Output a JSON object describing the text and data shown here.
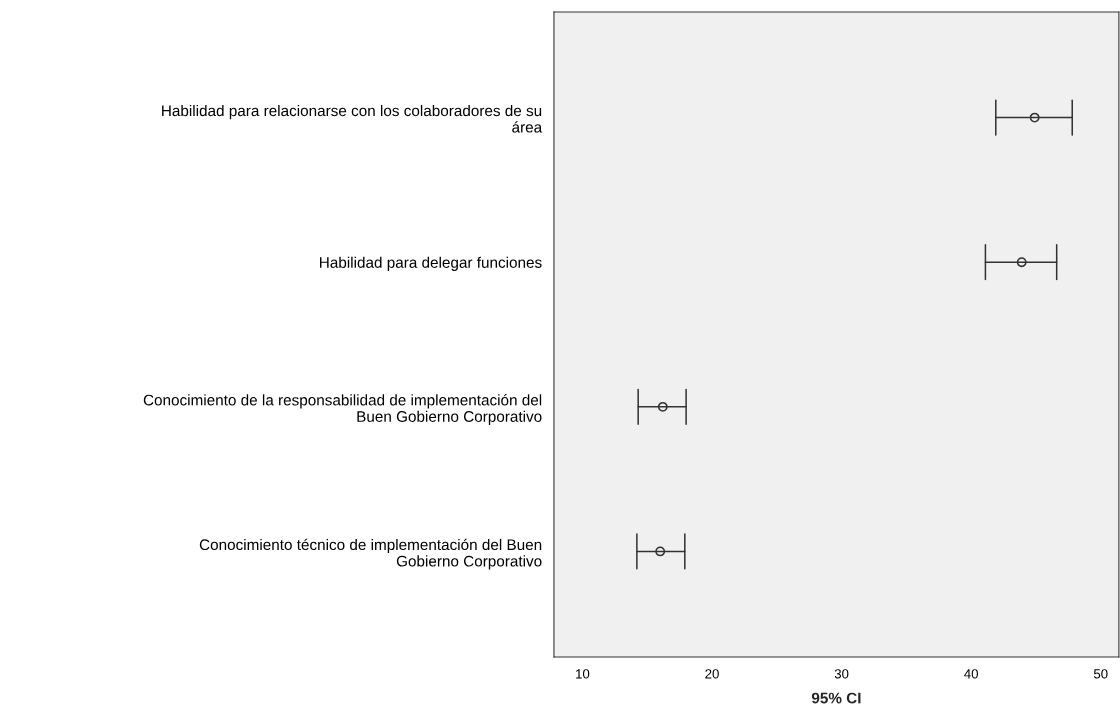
{
  "chart_data": {
    "type": "scatter",
    "orientation": "horizontal",
    "categories": [
      "Habilidad para relacionarse con los colaboradores de su\nárea",
      "Habilidad para delegar funciones",
      "Conocimiento de la responsabilidad de implementación del\nBuen Gobierno Corporativo",
      "Conocimiento técnico de implementación del Buen\nGobierno Corporativo"
    ],
    "values": [
      44.9,
      43.9,
      16.2,
      16.0
    ],
    "errors": [
      [
        41.9,
        47.8
      ],
      [
        41.1,
        46.6
      ],
      [
        14.3,
        18.0
      ],
      [
        14.2,
        17.9
      ]
    ],
    "color": "#333333",
    "marker": "circle",
    "grid": false,
    "xlabel": "95% CI",
    "xlim": [
      7.8,
      51.4
    ],
    "xticks": [
      10,
      20,
      30,
      40,
      50
    ]
  }
}
